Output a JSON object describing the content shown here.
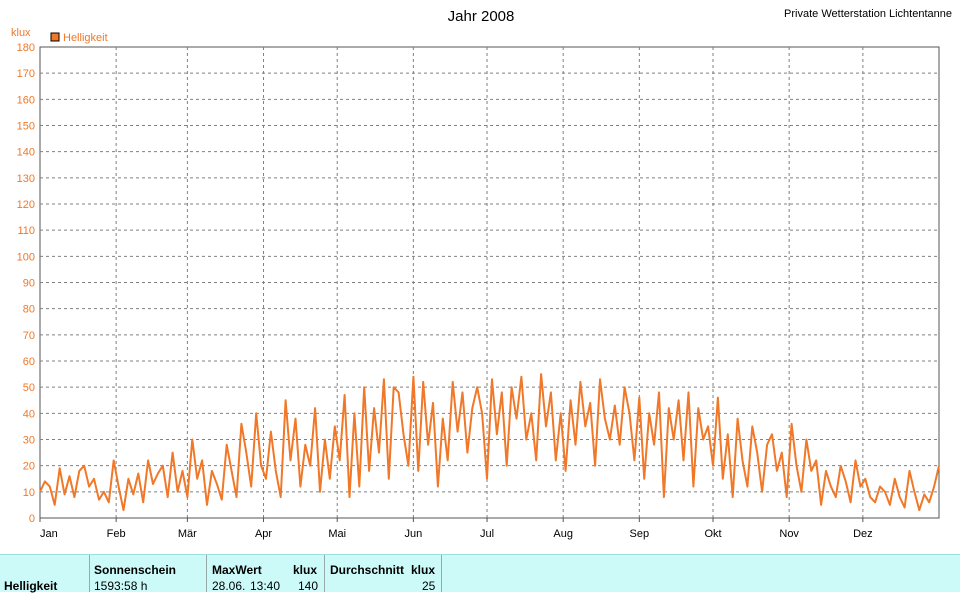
{
  "header": {
    "title": "Jahr 2008",
    "station": "Private Wetterstation Lichtentanne"
  },
  "chart_data": {
    "type": "line",
    "title": "Jahr 2008",
    "ylabel": "klux",
    "ylim": [
      0,
      180
    ],
    "yticks": [
      0,
      10,
      20,
      30,
      40,
      50,
      60,
      70,
      80,
      90,
      100,
      110,
      120,
      130,
      140,
      150,
      160,
      170,
      180
    ],
    "month_labels": [
      "Jan",
      "Feb",
      "Mär",
      "Apr",
      "Mai",
      "Jun",
      "Jul",
      "Aug",
      "Sep",
      "Okt",
      "Nov",
      "Dez"
    ],
    "xlim_days": [
      0,
      366
    ],
    "grid": true,
    "legend_position": "top-left",
    "series": [
      {
        "name": "Helligkeit",
        "color": "#f07828",
        "x_day": [
          0,
          2,
          4,
          6,
          8,
          10,
          12,
          14,
          16,
          18,
          20,
          22,
          24,
          26,
          28,
          30,
          32,
          34,
          36,
          38,
          40,
          42,
          44,
          46,
          48,
          50,
          52,
          54,
          56,
          58,
          60,
          62,
          64,
          66,
          68,
          70,
          72,
          74,
          76,
          78,
          80,
          82,
          84,
          86,
          88,
          90,
          92,
          94,
          96,
          98,
          100,
          102,
          104,
          106,
          108,
          110,
          112,
          114,
          116,
          118,
          120,
          122,
          124,
          126,
          128,
          130,
          132,
          134,
          136,
          138,
          140,
          142,
          144,
          146,
          148,
          150,
          152,
          154,
          156,
          158,
          160,
          162,
          164,
          166,
          168,
          170,
          172,
          174,
          176,
          178,
          180,
          182,
          184,
          186,
          188,
          190,
          192,
          194,
          196,
          198,
          200,
          202,
          204,
          206,
          208,
          210,
          212,
          214,
          216,
          218,
          220,
          222,
          224,
          226,
          228,
          230,
          232,
          234,
          236,
          238,
          240,
          242,
          244,
          246,
          248,
          250,
          252,
          254,
          256,
          258,
          260,
          262,
          264,
          266,
          268,
          270,
          272,
          274,
          276,
          278,
          280,
          282,
          284,
          286,
          288,
          290,
          292,
          294,
          296,
          298,
          300,
          302,
          304,
          306,
          308,
          310,
          312,
          314,
          316,
          318,
          320,
          322,
          324,
          326,
          328,
          330,
          332,
          334,
          336,
          338,
          340,
          342,
          344,
          346,
          348,
          350,
          352,
          354,
          356,
          358,
          360,
          362,
          364,
          366
        ],
        "values": [
          10,
          14,
          12,
          5,
          19,
          9,
          16,
          8,
          18,
          20,
          12,
          15,
          7,
          10,
          6,
          22,
          12,
          3,
          15,
          9,
          17,
          6,
          22,
          13,
          17,
          20,
          8,
          25,
          10,
          18,
          8,
          30,
          15,
          22,
          5,
          18,
          13,
          7,
          28,
          18,
          8,
          36,
          25,
          12,
          40,
          20,
          15,
          33,
          18,
          8,
          45,
          22,
          38,
          12,
          28,
          20,
          42,
          10,
          30,
          15,
          35,
          22,
          47,
          8,
          40,
          12,
          50,
          18,
          42,
          25,
          53,
          15,
          50,
          48,
          32,
          20,
          54,
          18,
          52,
          28,
          44,
          12,
          38,
          22,
          52,
          33,
          48,
          25,
          42,
          50,
          40,
          15,
          53,
          32,
          48,
          20,
          50,
          38,
          54,
          30,
          40,
          22,
          55,
          35,
          48,
          22,
          40,
          18,
          45,
          28,
          52,
          35,
          44,
          20,
          53,
          38,
          30,
          43,
          28,
          50,
          40,
          22,
          46,
          15,
          40,
          28,
          48,
          8,
          42,
          30,
          45,
          22,
          48,
          12,
          42,
          30,
          35,
          20,
          46,
          15,
          32,
          8,
          38,
          22,
          12,
          35,
          25,
          10,
          28,
          32,
          18,
          25,
          8,
          36,
          20,
          10,
          30,
          18,
          22,
          5,
          18,
          12,
          8,
          20,
          14,
          6,
          22,
          12,
          15,
          8,
          6,
          12,
          10,
          5,
          15,
          8,
          4,
          18,
          10,
          3,
          9,
          6,
          12,
          20
        ]
      }
    ]
  },
  "footer": {
    "row_label": "Helligkeit",
    "sun": {
      "head": "Sonnenschein",
      "value": "1593:58 h"
    },
    "max": {
      "head": "MaxWert",
      "unit": "klux",
      "date": "28.06.",
      "time": "13:40",
      "value": "140"
    },
    "avg": {
      "head": "Durchschnitt",
      "unit": "klux",
      "value": "25"
    }
  }
}
